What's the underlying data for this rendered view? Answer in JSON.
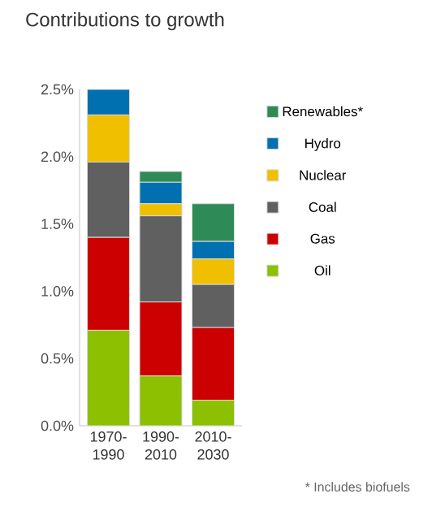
{
  "chart_data": {
    "type": "bar",
    "stacked": true,
    "title": "Contributions to growth",
    "categories": [
      "1970-1990",
      "1990-2010",
      "2010-2030"
    ],
    "series": [
      {
        "name": "Oil",
        "color": "#8cc000",
        "values": [
          0.71,
          0.37,
          0.19
        ]
      },
      {
        "name": "Gas",
        "color": "#cc0000",
        "values": [
          0.69,
          0.55,
          0.54
        ]
      },
      {
        "name": "Coal",
        "color": "#606060",
        "values": [
          0.56,
          0.64,
          0.32
        ]
      },
      {
        "name": "Nuclear",
        "color": "#f0c000",
        "values": [
          0.35,
          0.09,
          0.19
        ]
      },
      {
        "name": "Hydro",
        "color": "#0070b0",
        "values": [
          0.19,
          0.16,
          0.13
        ]
      },
      {
        "name": "Renewables*",
        "color": "#2e8b57",
        "values": [
          0,
          0.08,
          0.28
        ]
      }
    ],
    "ylim": [
      0,
      2.5
    ],
    "yticks": [
      {
        "value": 0,
        "label": "0.0%"
      },
      {
        "value": 0.5,
        "label": "0.5%"
      },
      {
        "value": 1,
        "label": "1.0%"
      },
      {
        "value": 1.5,
        "label": "1.5%"
      },
      {
        "value": 2,
        "label": "2.0%"
      },
      {
        "value": 2.5,
        "label": "2.5%"
      }
    ],
    "legend": "right",
    "grid": false,
    "annotations": [
      "* Includes biofuels"
    ]
  }
}
